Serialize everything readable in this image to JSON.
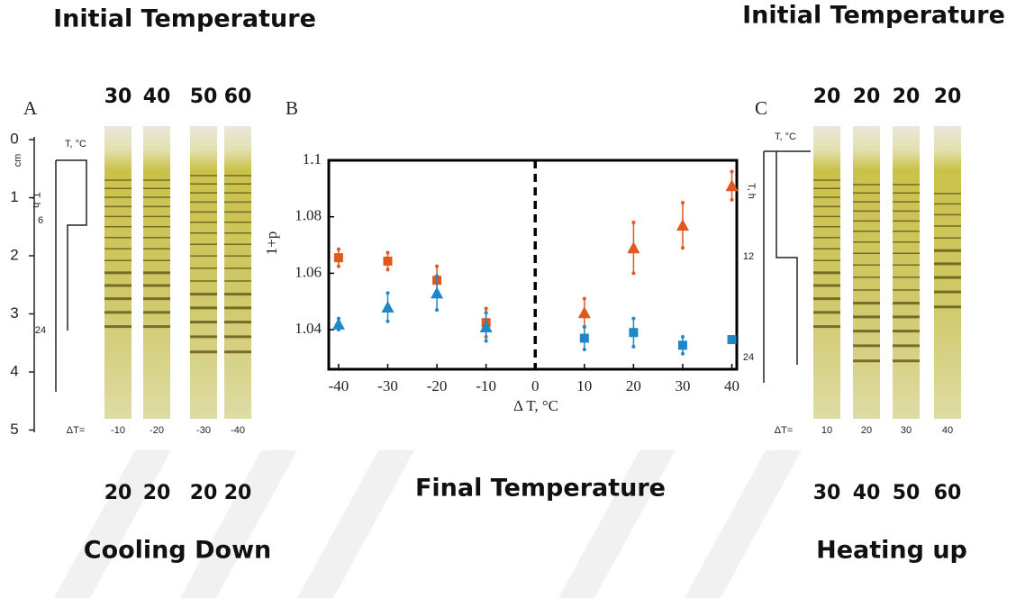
{
  "headings": {
    "initial_left": "Initial Temperature",
    "initial_right": "Initial Temperature",
    "final": "Final Temperature",
    "cooling": "Cooling Down",
    "heating": "Heating up"
  },
  "panel_a": {
    "label": "A",
    "initial_temps": [
      30,
      40,
      50,
      60
    ],
    "final_temps": [
      20,
      20,
      20,
      20
    ],
    "delta_t_label": "ΔT=",
    "delta_t": [
      -10,
      -20,
      -30,
      -40
    ],
    "depth_unit": "cm",
    "depth_ticks": [
      0,
      1,
      2,
      3,
      4,
      5
    ],
    "temp_label": "T, °C",
    "time_label": "T, h",
    "times": [
      6,
      24
    ]
  },
  "panel_c": {
    "label": "C",
    "initial_temps": [
      20,
      20,
      20,
      20
    ],
    "final_temps": [
      30,
      40,
      50,
      60
    ],
    "delta_t_label": "ΔT=",
    "delta_t": [
      10,
      20,
      30,
      40
    ],
    "temp_label": "T, °C",
    "time_label": "T, h",
    "times": [
      12,
      24
    ]
  },
  "chart_data": {
    "type": "scatter",
    "label": "B",
    "xlabel": "Δ T, °C",
    "ylabel": "1+p",
    "xlim": [
      -42,
      41
    ],
    "ylim": [
      1.026,
      1.1
    ],
    "xticks": [
      -40,
      -30,
      -20,
      -10,
      0,
      10,
      20,
      30,
      40
    ],
    "yticks": [
      1.04,
      1.06,
      1.08,
      1.1
    ],
    "zero_line": true,
    "series": [
      {
        "color": "#e0581e",
        "marker": "square",
        "x": [
          -40,
          -30,
          -20,
          -10
        ],
        "values": [
          1.0655,
          1.0643,
          1.0575,
          1.0425
        ],
        "errors": [
          0.003,
          0.003,
          0.005,
          0.005
        ]
      },
      {
        "color": "#1f86c8",
        "marker": "triangle",
        "x": [
          -40,
          -30,
          -20,
          -10
        ],
        "values": [
          1.042,
          1.048,
          1.053,
          1.041
        ],
        "errors": [
          0.002,
          0.005,
          0.006,
          0.005
        ]
      },
      {
        "color": "#e0581e",
        "marker": "triangle",
        "x": [
          10,
          20,
          30,
          40
        ],
        "values": [
          1.046,
          1.069,
          1.077,
          1.091
        ],
        "errors": [
          0.005,
          0.009,
          0.008,
          0.005
        ]
      },
      {
        "color": "#1f86c8",
        "marker": "square",
        "x": [
          10,
          20,
          30,
          40
        ],
        "values": [
          1.037,
          1.039,
          1.0345,
          1.0365
        ],
        "errors": [
          0.004,
          0.005,
          0.003,
          0.001
        ]
      }
    ]
  }
}
